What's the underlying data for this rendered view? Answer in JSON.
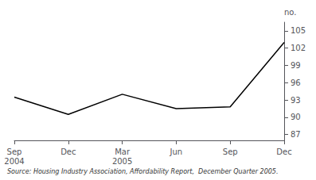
{
  "chart_data": {
    "type": "line",
    "categories": [
      "Sep\n2004",
      "Dec",
      "Mar\n2005",
      "Jun",
      "Sep",
      "Dec"
    ],
    "values": [
      93.5,
      90.5,
      94.0,
      91.5,
      91.8,
      103.0
    ],
    "color": "#000000",
    "ylim": [
      86.0,
      106.5
    ],
    "yticks": [
      87,
      90,
      93,
      96,
      99,
      102,
      105
    ],
    "ylabel": "no.",
    "annotations": [
      "Source: Housing Industry Association, Affordability Report,  December Quarter 2005."
    ],
    "grid": false
  }
}
